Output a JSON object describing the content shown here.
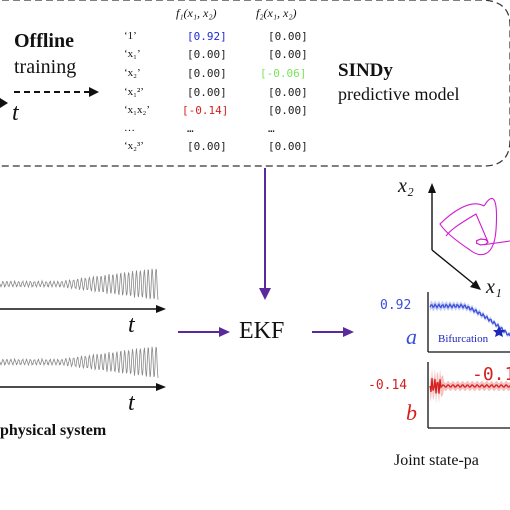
{
  "offline": {
    "title": "Offline",
    "subtitle": "training",
    "t_label": "t"
  },
  "table": {
    "headers": [
      "f₁(x₁, x₂)",
      "f₂(x₁, x₂)"
    ],
    "rows": [
      {
        "label": "‘1’",
        "f1": "[0.92]",
        "f2": "[0.00]",
        "f1_color": "#1f2ad6",
        "f2_color": "#222222"
      },
      {
        "label": "‘x₁’",
        "f1": "[0.00]",
        "f2": "[0.00]",
        "f1_color": "#222222",
        "f2_color": "#222222"
      },
      {
        "label": "‘x₂’",
        "f1": "[0.00]",
        "f2": "[-0.06]",
        "f1_color": "#222222",
        "f2_color": "#7be35a"
      },
      {
        "label": "‘x₁²’",
        "f1": "[0.00]",
        "f2": "[0.00]",
        "f1_color": "#222222",
        "f2_color": "#222222"
      },
      {
        "label": "‘x₁x₂’",
        "f1": "[-0.14]",
        "f2": "[0.00]",
        "f1_color": "#d62020",
        "f2_color": "#222222"
      },
      {
        "label": "…",
        "f1": "…",
        "f2": "…",
        "f1_color": "#222222",
        "f2_color": "#222222"
      },
      {
        "label": "‘x₂³’",
        "f1": "[0.00]",
        "f2": "[0.00]",
        "f1_color": "#222222",
        "f2_color": "#222222"
      }
    ]
  },
  "sindy": {
    "title": "SINDy",
    "subtitle": "predictive model"
  },
  "physical": {
    "t1": "t",
    "t2": "t",
    "caption": "physical system"
  },
  "ekf": {
    "label": "EKF"
  },
  "phase": {
    "x2_label": "x₂",
    "x1_label": "x₁"
  },
  "param_a": {
    "value": "0.92",
    "symbol": "a",
    "annotation": "Bifurcation",
    "color": "#3b4fd8"
  },
  "param_b": {
    "value": "-0.14",
    "symbol": "b",
    "overlay": "-0.1",
    "color": "#d62020"
  },
  "joint": {
    "caption": "Joint state-pa"
  },
  "colors": {
    "arrow": "#5b2a9a",
    "phase_curve": "#d11ad1",
    "signal": "#8a8a8a"
  }
}
